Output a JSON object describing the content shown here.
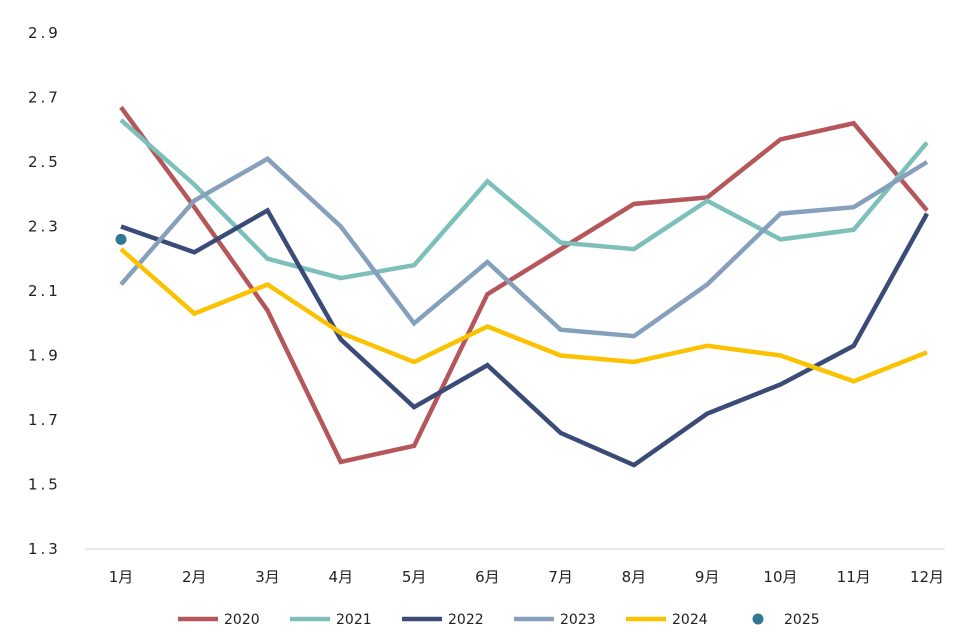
{
  "chart_data": {
    "type": "line",
    "categories": [
      "1月",
      "2月",
      "3月",
      "4月",
      "5月",
      "6月",
      "7月",
      "8月",
      "9月",
      "10月",
      "11月",
      "12月"
    ],
    "ylim": [
      1.3,
      2.9
    ],
    "yticks": [
      "1.3",
      "1.5",
      "1.7",
      "1.9",
      "2.1",
      "2.3",
      "2.5",
      "2.7",
      "2.9"
    ],
    "grid": false,
    "legend": "bottom",
    "series": [
      {
        "name": "2020",
        "color": "#b5575a",
        "values": [
          2.67,
          2.36,
          2.04,
          1.57,
          1.62,
          2.09,
          2.23,
          2.37,
          2.39,
          2.57,
          2.62,
          2.35
        ]
      },
      {
        "name": "2021",
        "color": "#7dc0bb",
        "values": [
          2.63,
          2.43,
          2.2,
          2.14,
          2.18,
          2.44,
          2.25,
          2.23,
          2.38,
          2.26,
          2.29,
          2.56
        ]
      },
      {
        "name": "2022",
        "color": "#394b76",
        "values": [
          2.3,
          2.22,
          2.35,
          1.95,
          1.74,
          1.87,
          1.66,
          1.56,
          1.72,
          1.81,
          1.93,
          2.34
        ]
      },
      {
        "name": "2023",
        "color": "#86a0bc",
        "values": [
          2.12,
          2.38,
          2.51,
          2.3,
          2.0,
          2.19,
          1.98,
          1.96,
          2.12,
          2.34,
          2.36,
          2.5
        ]
      },
      {
        "name": "2024",
        "color": "#fbc202",
        "values": [
          2.23,
          2.03,
          2.12,
          1.97,
          1.88,
          1.99,
          1.9,
          1.88,
          1.93,
          1.9,
          1.82,
          1.91
        ]
      }
    ],
    "points": [
      {
        "name": "2025",
        "color": "#2f7891",
        "category": "1月",
        "value": 2.26
      }
    ]
  }
}
